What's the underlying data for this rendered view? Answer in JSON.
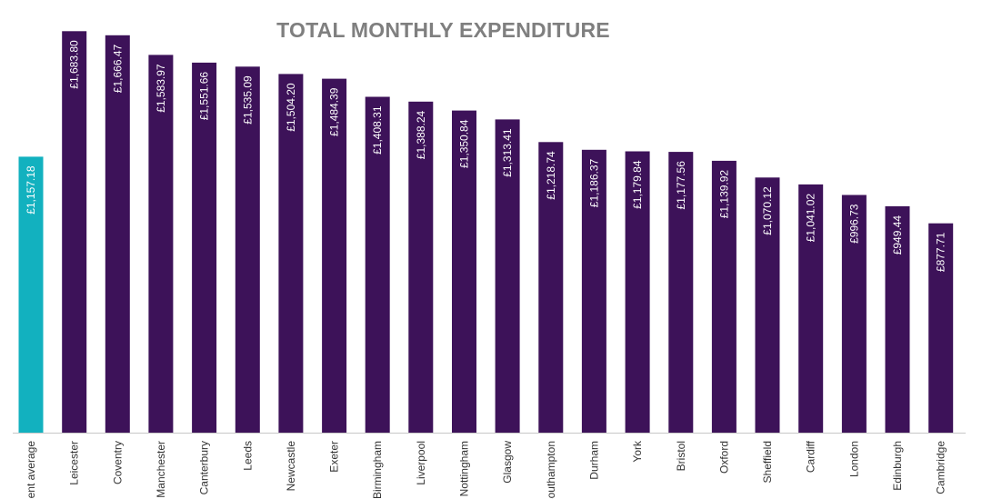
{
  "chart_data": {
    "type": "bar",
    "title": "TOTAL MONTHLY EXPENDITURE",
    "categories": [
      "Student average",
      "Leicester",
      "Coventry",
      "Manchester",
      "Canterbury",
      "Leeds",
      "Newcastle",
      "Exeter",
      "Birmingham",
      "Liverpool",
      "Nottingham",
      "Glasgow",
      "Southampton",
      "Durham",
      "York",
      "Bristol",
      "Oxford",
      "Sheffield",
      "Cardiff",
      "London",
      "Edinburgh",
      "Cambridge"
    ],
    "values": [
      1157.18,
      1683.8,
      1666.47,
      1583.97,
      1551.66,
      1535.09,
      1504.2,
      1484.39,
      1408.31,
      1388.24,
      1350.84,
      1313.41,
      1218.74,
      1186.37,
      1179.84,
      1177.56,
      1139.92,
      1070.12,
      1041.02,
      996.73,
      949.44,
      877.71
    ],
    "value_labels": [
      "£1,157.18",
      "£1,683.80",
      "£1,666.47",
      "£1,583.97",
      "£1,551.66",
      "£1,535.09",
      "£1,504.20",
      "£1,484.39",
      "£1,408.31",
      "£1,388.24",
      "£1,350.84",
      "£1,313.41",
      "£1,218.74",
      "£1,186.37",
      "£1,179.84",
      "£1,177.56",
      "£1,139.92",
      "£1,070.12",
      "£1,041.02",
      "£996.73",
      "£949.44",
      "£877.71"
    ],
    "ylim": [
      0,
      1700
    ],
    "highlight_index": 0,
    "colors": {
      "highlight": "#12B1BF",
      "bar": "#3D1259",
      "axis": "#c8c8c8"
    },
    "xlabel": "",
    "ylabel": "",
    "grid": false,
    "legend": "none"
  }
}
